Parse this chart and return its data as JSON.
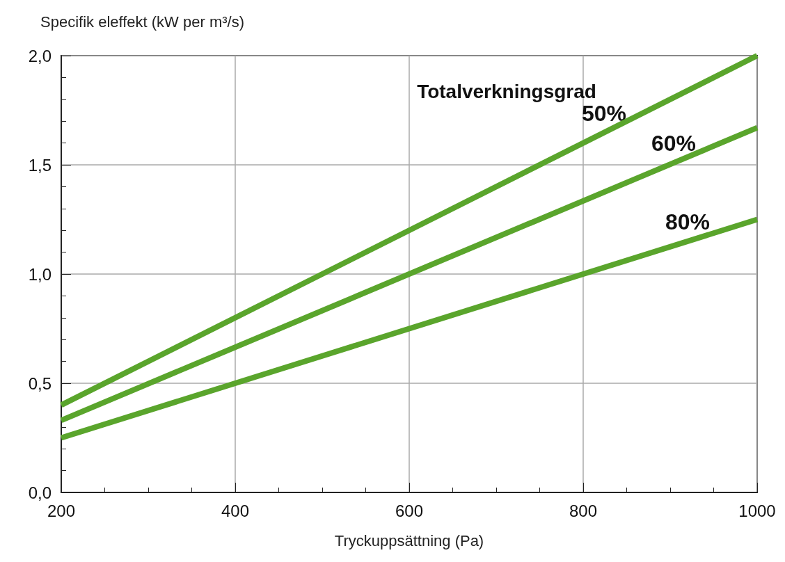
{
  "chart_data": {
    "type": "line",
    "xlabel": "Tryckuppsättning (Pa)",
    "ylabel": "Specifik eleffekt (kW per m³/s)",
    "legend_title": "Totalverkningsgrad",
    "x": [
      200,
      1000
    ],
    "series": [
      {
        "name": "50%",
        "color": "#5aa52c",
        "values": [
          0.4,
          2.0
        ]
      },
      {
        "name": "60%",
        "color": "#5aa52c",
        "values": [
          0.33,
          1.67
        ]
      },
      {
        "name": "80%",
        "color": "#5aa52c",
        "values": [
          0.25,
          1.25
        ]
      }
    ],
    "xlim": [
      200,
      1000
    ],
    "xticks": [
      200,
      {
        "value": 250,
        "label": null
      },
      {
        "value": 300,
        "label": null
      },
      {
        "value": 350,
        "label": null
      },
      400,
      {
        "value": 450,
        "label": null
      },
      {
        "value": 500,
        "label": null
      },
      {
        "value": 550,
        "label": null
      },
      600,
      {
        "value": 650,
        "label": null
      },
      {
        "value": 700,
        "label": null
      },
      {
        "value": 750,
        "label": null
      },
      800,
      {
        "value": 850,
        "label": null
      },
      {
        "value": 900,
        "label": null
      },
      {
        "value": 950,
        "label": null
      },
      1000
    ],
    "ylim": [
      0,
      2.0
    ],
    "yticks": [
      {
        "value": 0,
        "label": "0,0"
      },
      {
        "value": 0.1,
        "label": null
      },
      {
        "value": 0.2,
        "label": null
      },
      {
        "value": 0.3,
        "label": null
      },
      {
        "value": 0.4,
        "label": null
      },
      {
        "value": 0.5,
        "label": "0,5"
      },
      {
        "value": 0.6,
        "label": null
      },
      {
        "value": 0.7,
        "label": null
      },
      {
        "value": 0.8,
        "label": null
      },
      {
        "value": 0.9,
        "label": null
      },
      {
        "value": 1.0,
        "label": "1,0"
      },
      {
        "value": 1.1,
        "label": null
      },
      {
        "value": 1.2,
        "label": null
      },
      {
        "value": 1.3,
        "label": null
      },
      {
        "value": 1.4,
        "label": null
      },
      {
        "value": 1.5,
        "label": "1,5"
      },
      {
        "value": 1.6,
        "label": null
      },
      {
        "value": 1.7,
        "label": null
      },
      {
        "value": 1.8,
        "label": null
      },
      {
        "value": 1.9,
        "label": null
      },
      {
        "value": 2.0,
        "label": "2,0"
      }
    ],
    "grid": true,
    "legend": false,
    "marker": "none",
    "line_style": "solid"
  }
}
